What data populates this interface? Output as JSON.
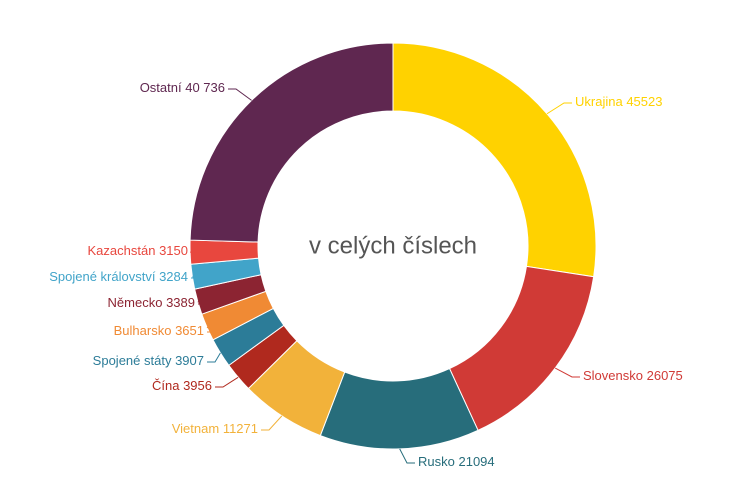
{
  "chart_data": {
    "type": "donut",
    "title": "v celých číslech",
    "categories": [
      "Ukrajina",
      "Slovensko",
      "Rusko",
      "Vietnam",
      "Čína",
      "Spojené státy",
      "Bulharsko",
      "Německo",
      "Spojené království",
      "Kazachstán",
      "Ostatní"
    ],
    "values": [
      45523,
      26075,
      21094,
      11271,
      3956,
      3907,
      3651,
      3389,
      3284,
      3150,
      40736
    ],
    "value_labels": [
      "45523",
      "26075",
      "21094",
      "11271",
      "3956",
      "3907",
      "3651",
      "3389",
      "3284",
      "3150",
      "40 736"
    ],
    "colors": [
      "#ffd200",
      "#d03a36",
      "#276d7b",
      "#f2b23a",
      "#b0291e",
      "#2c7c98",
      "#f08a34",
      "#8c2432",
      "#41a4c9",
      "#e8473e",
      "#5f2750"
    ]
  }
}
